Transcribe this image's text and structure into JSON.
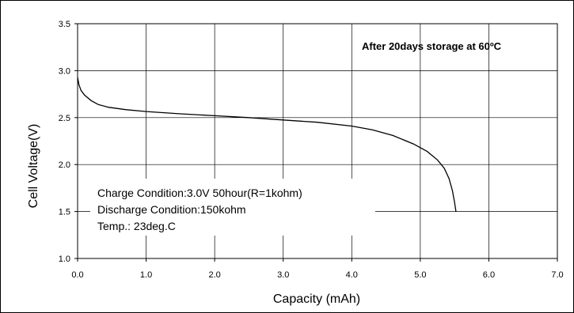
{
  "chart_data": {
    "type": "line",
    "title": "After 20days storage at 60ºC",
    "xlabel": "Capacity (mAh)",
    "ylabel": "Cell Voltage(V)",
    "xlim": [
      0,
      7
    ],
    "ylim": [
      1,
      3.5
    ],
    "x_ticks": [
      "0.0",
      "1.0",
      "2.0",
      "3.0",
      "4.0",
      "5.0",
      "6.0",
      "7.0"
    ],
    "y_ticks": [
      "1.0",
      "1.5",
      "2.0",
      "2.5",
      "3.0",
      "3.5"
    ],
    "grid": true,
    "annotations": [
      "Charge Condition:3.0V 50hour(R=1kohm)",
      "Discharge Condition:150kohm",
      "Temp.: 23deg.C"
    ],
    "series": [
      {
        "color": "#000000",
        "x": [
          0.0,
          0.02,
          0.05,
          0.1,
          0.2,
          0.3,
          0.45,
          0.7,
          1.0,
          1.5,
          2.0,
          2.5,
          3.0,
          3.5,
          4.0,
          4.3,
          4.6,
          4.9,
          5.1,
          5.25,
          5.35,
          5.42,
          5.47,
          5.5,
          5.52
        ],
        "y": [
          2.93,
          2.85,
          2.79,
          2.74,
          2.68,
          2.64,
          2.61,
          2.585,
          2.565,
          2.54,
          2.52,
          2.5,
          2.475,
          2.45,
          2.41,
          2.37,
          2.31,
          2.22,
          2.14,
          2.05,
          1.96,
          1.85,
          1.72,
          1.6,
          1.5
        ]
      }
    ]
  }
}
